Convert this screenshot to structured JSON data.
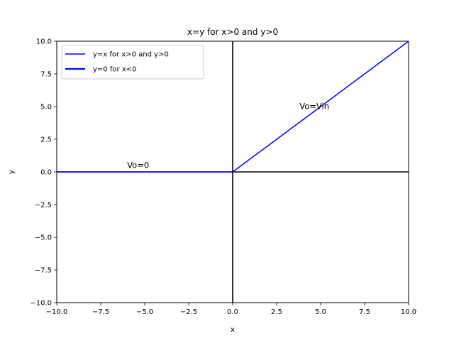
{
  "chart_data": {
    "type": "line",
    "title": "x=y for x>0 and y>0",
    "xlabel": "x",
    "ylabel": "y",
    "xlim": [
      -10,
      10
    ],
    "ylim": [
      -10,
      10
    ],
    "xticks": [
      -10,
      -7.5,
      -5,
      -2.5,
      0,
      2.5,
      5,
      7.5,
      10
    ],
    "yticks": [
      -10,
      -7.5,
      -5,
      -2.5,
      0,
      2.5,
      5,
      7.5,
      10
    ],
    "xtick_labels": [
      "−10.0",
      "−7.5",
      "−5.0",
      "−2.5",
      "0.0",
      "2.5",
      "5.0",
      "7.5",
      "10.0"
    ],
    "ytick_labels": [
      "−10.0",
      "−7.5",
      "−5.0",
      "−2.5",
      "0.0",
      "2.5",
      "5.0",
      "7.5",
      "10.0"
    ],
    "grid": false,
    "legend_position": "upper-left",
    "series": [
      {
        "name": "y=x for x>0 and y>0",
        "color": "#0000ff",
        "points": [
          [
            0,
            0
          ],
          [
            10,
            10
          ]
        ]
      },
      {
        "name": "y=0 for x<0",
        "color": "#0000ff",
        "points": [
          [
            -10,
            0
          ],
          [
            0,
            0
          ]
        ]
      }
    ],
    "reference_lines": [
      {
        "orientation": "horizontal",
        "value": 0,
        "color": "#000000"
      },
      {
        "orientation": "vertical",
        "value": 0,
        "color": "#000000"
      }
    ],
    "annotations": [
      {
        "text": "Vo=Vin",
        "x": 3.8,
        "y": 4.8
      },
      {
        "text": "Vo=0",
        "x": -6,
        "y": 0.3
      }
    ]
  }
}
